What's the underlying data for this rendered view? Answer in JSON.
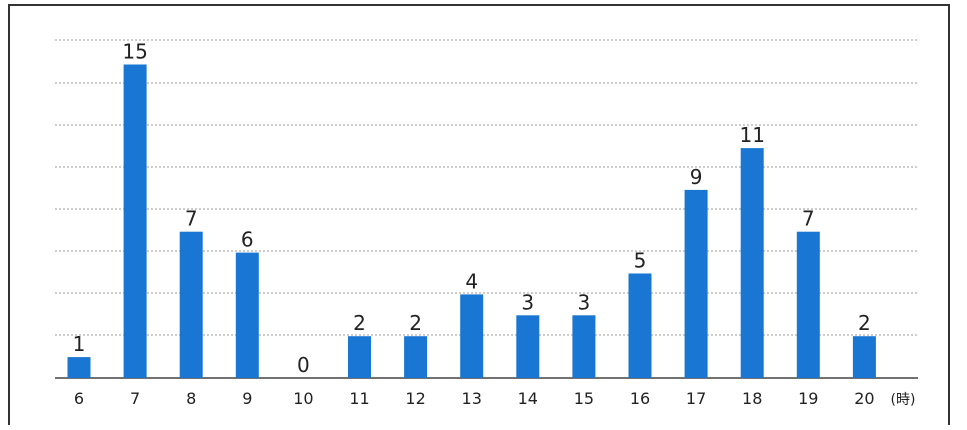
{
  "chart_data": {
    "type": "bar",
    "title": "",
    "xlabel": "",
    "ylabel": "",
    "x_unit": "(時)",
    "categories": [
      "6",
      "7",
      "8",
      "9",
      "10",
      "11",
      "12",
      "13",
      "14",
      "15",
      "16",
      "17",
      "18",
      "19",
      "20"
    ],
    "values": [
      1,
      15,
      7,
      6,
      0,
      2,
      2,
      4,
      3,
      3,
      5,
      9,
      11,
      7,
      2
    ],
    "ylim": [
      0,
      16
    ],
    "grid": true,
    "legend": "none",
    "bar_color": "#1976d2",
    "grid_color": "#999999",
    "frame_color": "#333333"
  }
}
